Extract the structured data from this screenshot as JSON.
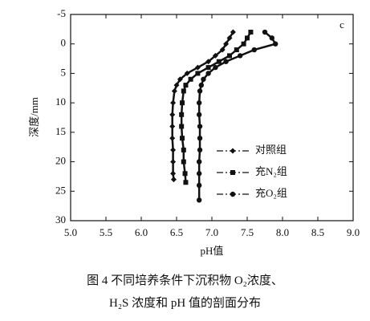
{
  "chart_data": {
    "type": "line",
    "panel_label": "c",
    "x_label": "pH值",
    "y_label": "深度/mm",
    "xlim": [
      5.0,
      9.0
    ],
    "xticks": [
      {
        "value": 5,
        "label": "5.0"
      },
      5.5,
      {
        "value": 6,
        "label": "6.0"
      },
      6.5,
      {
        "value": 7,
        "label": "7.0"
      },
      7.5,
      {
        "value": 8,
        "label": "8.0"
      },
      8.5,
      {
        "value": 9,
        "label": "9.0"
      }
    ],
    "ylim": [
      -5,
      30
    ],
    "y_inverted": true,
    "yticks": [
      -5,
      0,
      5,
      10,
      15,
      20,
      25,
      30
    ],
    "legend": "lower right",
    "series": [
      {
        "name": "对照组",
        "color": "#111111",
        "marker": "diamond",
        "x": [
          7.3,
          7.25,
          7.2,
          7.15,
          7.05,
          6.95,
          6.8,
          6.65,
          6.55,
          6.5,
          6.47,
          6.45,
          6.44,
          6.44,
          6.44,
          6.45,
          6.45,
          6.45,
          6.46
        ],
        "y": [
          -2,
          -1,
          0,
          1,
          2,
          3,
          4,
          5,
          6,
          7,
          8,
          10,
          12,
          14,
          16,
          18,
          20,
          22,
          23
        ]
      },
      {
        "name": "充N₂组",
        "color": "#111111",
        "marker": "square",
        "x": [
          7.55,
          7.5,
          7.45,
          7.35,
          7.25,
          7.1,
          6.95,
          6.8,
          6.7,
          6.63,
          6.6,
          6.58,
          6.57,
          6.57,
          6.58,
          6.6,
          6.6,
          6.62,
          6.63
        ],
        "y": [
          -2,
          -1,
          0,
          1,
          2,
          3,
          4,
          5,
          6,
          7,
          8,
          10,
          12,
          14,
          16,
          18,
          20,
          22,
          23.5
        ]
      },
      {
        "name": "充O₂组",
        "color": "#111111",
        "marker": "circle",
        "x": [
          7.75,
          7.85,
          7.9,
          7.6,
          7.4,
          7.2,
          7.05,
          6.95,
          6.88,
          6.85,
          6.83,
          6.82,
          6.82,
          6.83,
          6.83,
          6.83,
          6.82,
          6.82,
          6.82,
          6.82
        ],
        "y": [
          -2,
          -1,
          0,
          1,
          2,
          3,
          4,
          5,
          6,
          7,
          8,
          10,
          12,
          14,
          16,
          18,
          20,
          22,
          24,
          26.5
        ]
      }
    ]
  },
  "caption": {
    "line1": "图 4 不同培养条件下沉积物 O₂浓度、",
    "line2": "H₂S 浓度和 pH 值的剖面分布"
  }
}
